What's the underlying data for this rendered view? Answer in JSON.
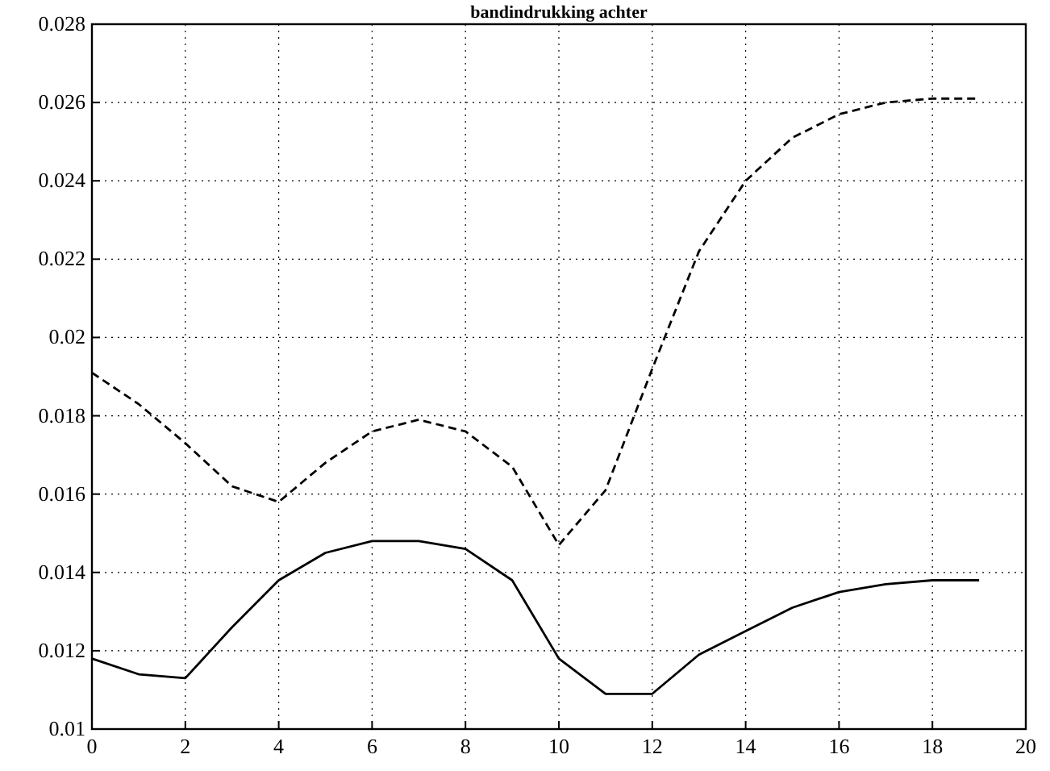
{
  "chart_data": {
    "type": "line",
    "title": "bandindrukking achter",
    "x": [
      0,
      1,
      2,
      3,
      4,
      5,
      6,
      7,
      8,
      9,
      10,
      11,
      12,
      13,
      14,
      15,
      16,
      17,
      18,
      19
    ],
    "series": [
      {
        "color": "#000000",
        "line_style": "dashed",
        "values": [
          0.0191,
          0.0183,
          0.0173,
          0.0162,
          0.0158,
          0.0168,
          0.0176,
          0.0179,
          0.0176,
          0.0167,
          0.0147,
          0.0161,
          0.0192,
          0.0222,
          0.024,
          0.0251,
          0.0257,
          0.026,
          0.0261,
          0.0261
        ]
      },
      {
        "color": "#000000",
        "line_style": "solid",
        "values": [
          0.0118,
          0.0114,
          0.0113,
          0.0126,
          0.0138,
          0.0145,
          0.0148,
          0.0148,
          0.0146,
          0.0138,
          0.0118,
          0.0109,
          0.0109,
          0.0119,
          0.0125,
          0.0131,
          0.0135,
          0.0137,
          0.0138,
          0.0138
        ]
      }
    ],
    "xlim": [
      0,
      20
    ],
    "xticks": [
      0,
      2,
      4,
      6,
      8,
      10,
      12,
      14,
      16,
      18,
      20
    ],
    "ylim": [
      0.01,
      0.028
    ],
    "yticks": [
      0.01,
      0.012,
      0.014,
      0.016,
      0.018,
      0.02,
      0.022,
      0.024,
      0.026,
      0.028
    ],
    "grid": true
  }
}
